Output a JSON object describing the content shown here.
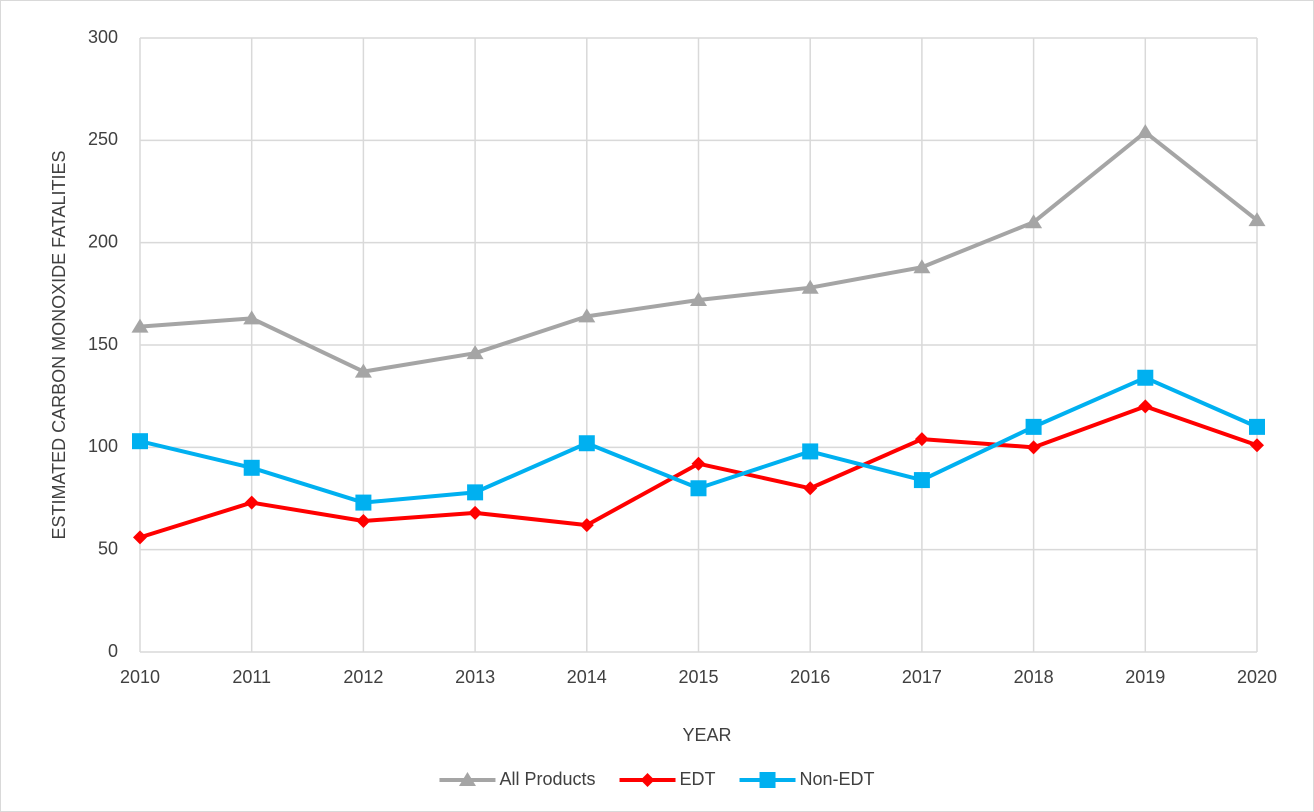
{
  "chart_data": {
    "type": "line",
    "x_label": "YEAR",
    "y_label": "ESTIMATED CARBON MONOXIDE FATALITIES",
    "x": [
      2010,
      2011,
      2012,
      2013,
      2014,
      2015,
      2016,
      2017,
      2018,
      2019,
      2020
    ],
    "xlim": [
      2010,
      2020
    ],
    "xticks": [
      2010,
      2011,
      2012,
      2013,
      2014,
      2015,
      2016,
      2017,
      2018,
      2019,
      2020
    ],
    "ylim": [
      0,
      300
    ],
    "yticks": [
      0,
      50,
      100,
      150,
      200,
      250,
      300
    ],
    "grid": true,
    "legend": "bottom",
    "series": [
      {
        "name": "All Products",
        "color": "#a5a5a5",
        "marker": "triangle",
        "values": [
          159,
          163,
          137,
          146,
          164,
          172,
          178,
          188,
          210,
          254,
          211
        ]
      },
      {
        "name": "EDT",
        "color": "#ff0000",
        "marker": "diamond",
        "values": [
          56,
          73,
          64,
          68,
          62,
          92,
          80,
          104,
          100,
          120,
          101
        ]
      },
      {
        "name": "Non-EDT",
        "color": "#00b0f0",
        "marker": "square",
        "values": [
          103,
          90,
          73,
          78,
          102,
          80,
          98,
          84,
          110,
          134,
          110
        ]
      }
    ]
  }
}
